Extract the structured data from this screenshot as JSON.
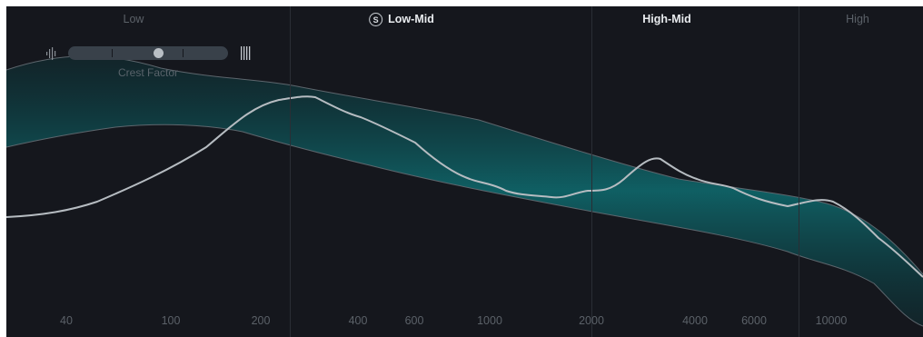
{
  "bands": [
    {
      "label": "Low",
      "active": false,
      "solo": ""
    },
    {
      "label": "Low-Mid",
      "active": true,
      "solo": "S"
    },
    {
      "label": "High-Mid",
      "active": true,
      "solo": ""
    },
    {
      "label": "High",
      "active": false,
      "solo": ""
    }
  ],
  "crest_factor": {
    "label": "Crest Factor",
    "value_fraction": 0.57
  },
  "frequency_axis": {
    "tick_labels": [
      "40",
      "100",
      "200",
      "400",
      "600",
      "1000",
      "2000",
      "4000",
      "6000",
      "10000"
    ]
  },
  "colors": {
    "background": "#15171d",
    "band_fill": "#0f6367",
    "curve": "#b6bcc1",
    "band_edge": "#5d666d",
    "label_dim": "#5b6168",
    "label_active": "#e9ecef"
  },
  "icons": {
    "crest_min": "sparse-bars-icon",
    "crest_max": "dense-bars-icon",
    "solo": "solo-icon"
  }
}
